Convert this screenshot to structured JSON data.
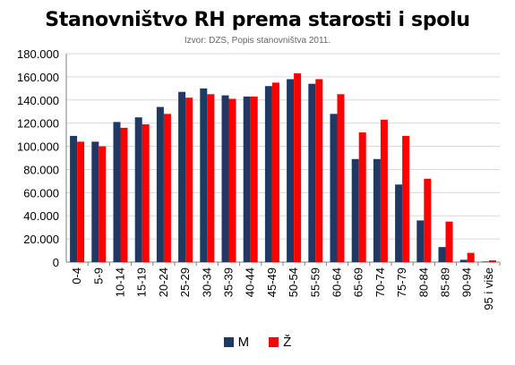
{
  "chart_data": {
    "type": "bar",
    "title": "Stanovništvo RH prema starosti i spolu",
    "subtitle": "Izvor: DZS, Popis stanovništva 2011.",
    "categories": [
      "0-4",
      "5-9",
      "10-14",
      "15-19",
      "20-24",
      "25-29",
      "30-34",
      "35-39",
      "40-44",
      "45-49",
      "50-54",
      "55-59",
      "60-64",
      "65-69",
      "70-74",
      "75-79",
      "80-84",
      "85-89",
      "90-94",
      "95 i više"
    ],
    "series": [
      {
        "name": "M",
        "color": "#1F3864",
        "values": [
          109000,
          104000,
          121000,
          125000,
          134000,
          147000,
          150000,
          144000,
          143000,
          152000,
          158000,
          154000,
          128000,
          89000,
          89000,
          67000,
          36000,
          13000,
          2000,
          500
        ]
      },
      {
        "name": "Ž",
        "color": "#FF0000",
        "values": [
          104000,
          100000,
          116000,
          119000,
          128000,
          142000,
          145000,
          141000,
          143000,
          155000,
          163000,
          158000,
          145000,
          112000,
          123000,
          109000,
          72000,
          35000,
          8000,
          1500
        ]
      }
    ],
    "ylim": [
      0,
      180000
    ],
    "yticks": [
      0,
      20000,
      40000,
      60000,
      80000,
      100000,
      120000,
      140000,
      160000,
      180000
    ],
    "ytick_labels": [
      "0",
      "20.000",
      "40.000",
      "60.000",
      "80.000",
      "100.000",
      "120.000",
      "140.000",
      "160.000",
      "180.000"
    ],
    "grid": true,
    "legend_position": "bottom"
  }
}
